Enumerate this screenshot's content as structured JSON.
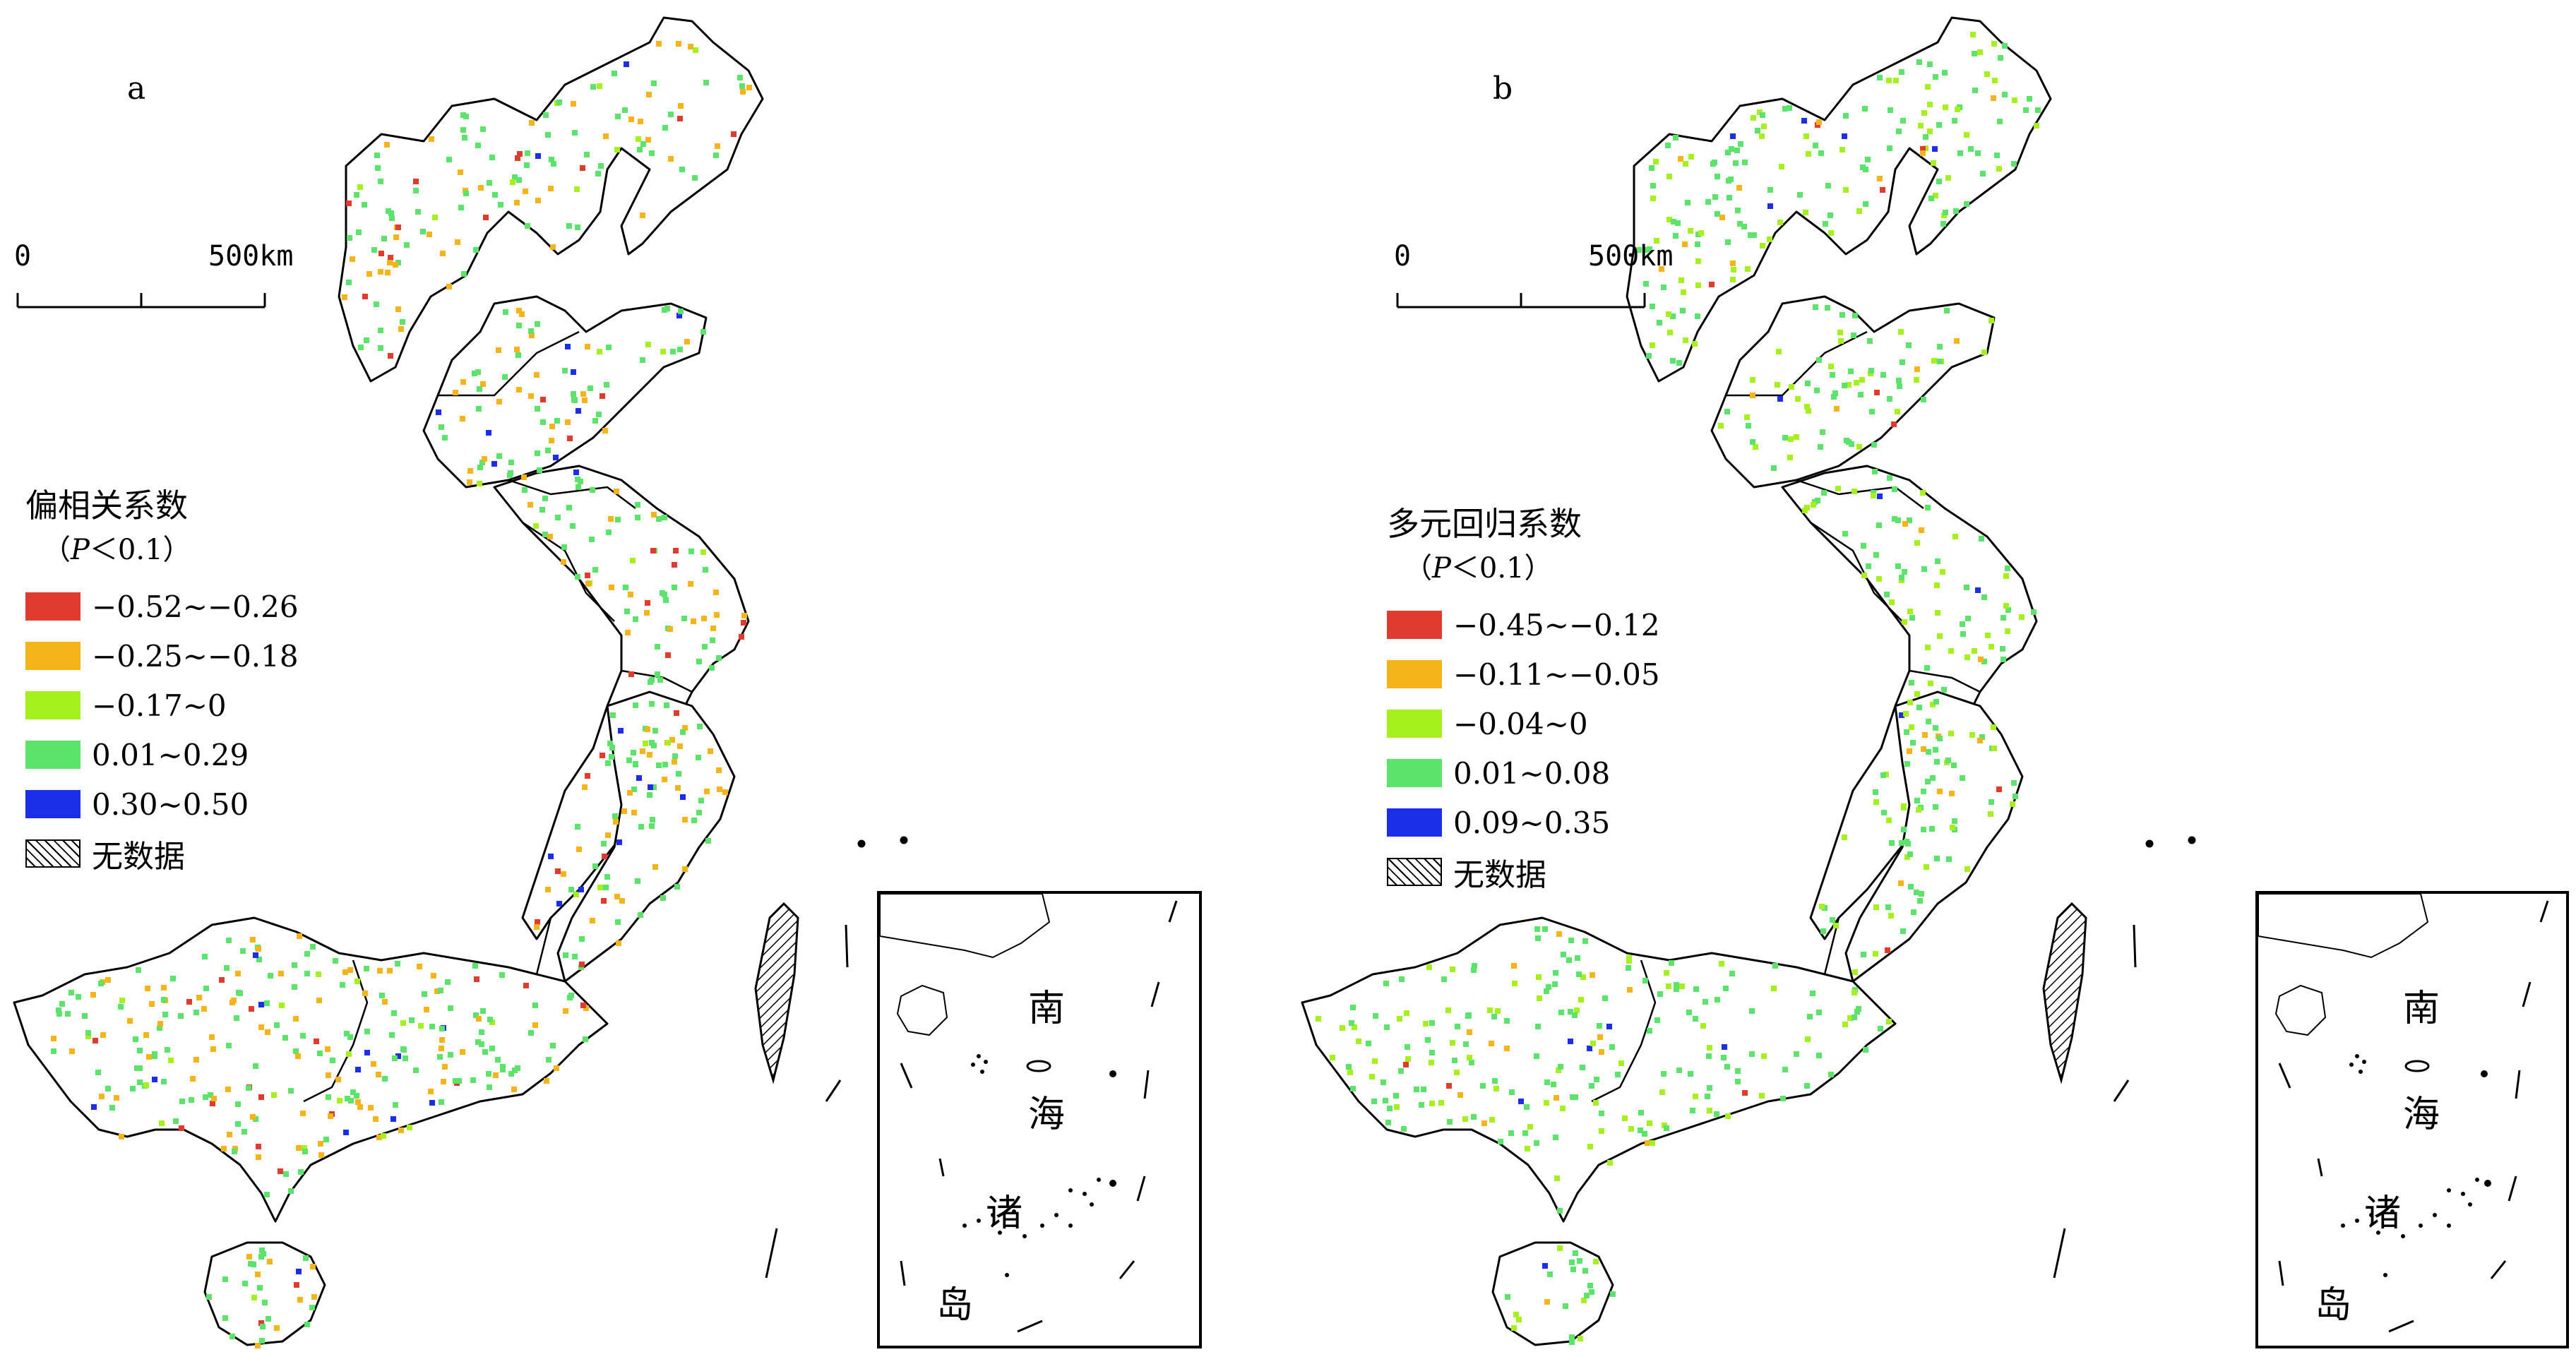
{
  "colors": {
    "red": "#e03c2d",
    "orange": "#f4b41a",
    "lime": "#a6f01e",
    "green": "#5be36b",
    "blue": "#1c2fe8"
  },
  "panels": [
    {
      "label": "a",
      "scale": {
        "start": "0",
        "end": "500km"
      },
      "legend": {
        "title": "偏相关系数",
        "sig_left": "（",
        "sig_p": "P",
        "sig_right": "＜0.1）",
        "classes": [
          {
            "label": "−0.52~−0.26",
            "color": "red"
          },
          {
            "label": "−0.25~−0.18",
            "color": "orange"
          },
          {
            "label": "−0.17~0",
            "color": "lime"
          },
          {
            "label": "0.01~0.29",
            "color": "green"
          },
          {
            "label": "0.30~0.50",
            "color": "blue"
          }
        ],
        "nodata": "无数据"
      }
    },
    {
      "label": "b",
      "scale": {
        "start": "0",
        "end": "500km"
      },
      "legend": {
        "title": "多元回归系数",
        "sig_left": "（",
        "sig_p": "P",
        "sig_right": "＜0.1）",
        "classes": [
          {
            "label": "−0.45~−0.12",
            "color": "red"
          },
          {
            "label": "−0.11~−0.05",
            "color": "orange"
          },
          {
            "label": "−0.04~0",
            "color": "lime"
          },
          {
            "label": "0.01~0.08",
            "color": "green"
          },
          {
            "label": "0.09~0.35",
            "color": "blue"
          }
        ],
        "nodata": "无数据"
      }
    }
  ],
  "inset_labels": [
    "南",
    "海",
    "诸",
    "岛"
  ]
}
